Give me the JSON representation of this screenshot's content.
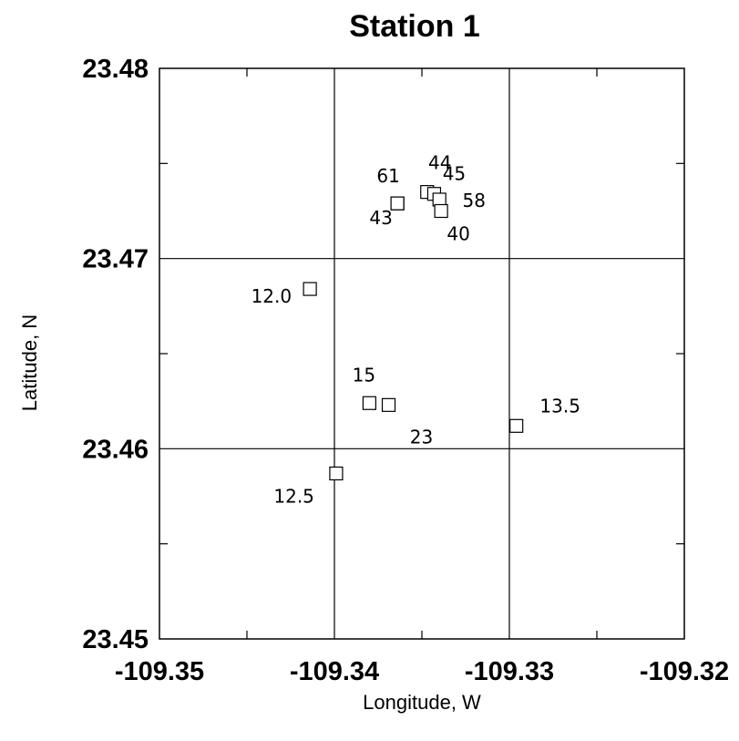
{
  "chart_data": {
    "type": "scatter",
    "title": "Station 1",
    "xlabel": "Longitude, W",
    "ylabel": "Latitude, N",
    "xlim": [
      -109.35,
      -109.32
    ],
    "ylim": [
      23.45,
      23.48
    ],
    "x_ticks": [
      -109.35,
      -109.34,
      -109.33,
      -109.32
    ],
    "x_tick_labels": [
      "-109.35",
      "-109.34",
      "-109.33",
      "-109.32"
    ],
    "y_ticks": [
      23.45,
      23.46,
      23.47,
      23.48
    ],
    "y_tick_labels": [
      "23.45",
      "23.46",
      "23.47",
      "23.48"
    ],
    "grid": true,
    "points": [
      {
        "label": "61",
        "x": -109.3364,
        "y": 23.4729
      },
      {
        "label": "44",
        "x": -109.3347,
        "y": 23.4735
      },
      {
        "label": "45",
        "x": -109.3343,
        "y": 23.4734
      },
      {
        "label": "58",
        "x": -109.334,
        "y": 23.4731
      },
      {
        "label": "40",
        "x": -109.3339,
        "y": 23.4725
      },
      {
        "label": "43",
        "x": -109.3364,
        "y": 23.4729
      },
      {
        "label": "12.0",
        "x": -109.3414,
        "y": 23.4684
      },
      {
        "label": "15",
        "x": -109.338,
        "y": 23.4624
      },
      {
        "label": "23",
        "x": -109.3369,
        "y": 23.4623
      },
      {
        "label": "13.5",
        "x": -109.3296,
        "y": 23.4612
      },
      {
        "label": "12.5",
        "x": -109.3399,
        "y": 23.4587
      }
    ]
  }
}
